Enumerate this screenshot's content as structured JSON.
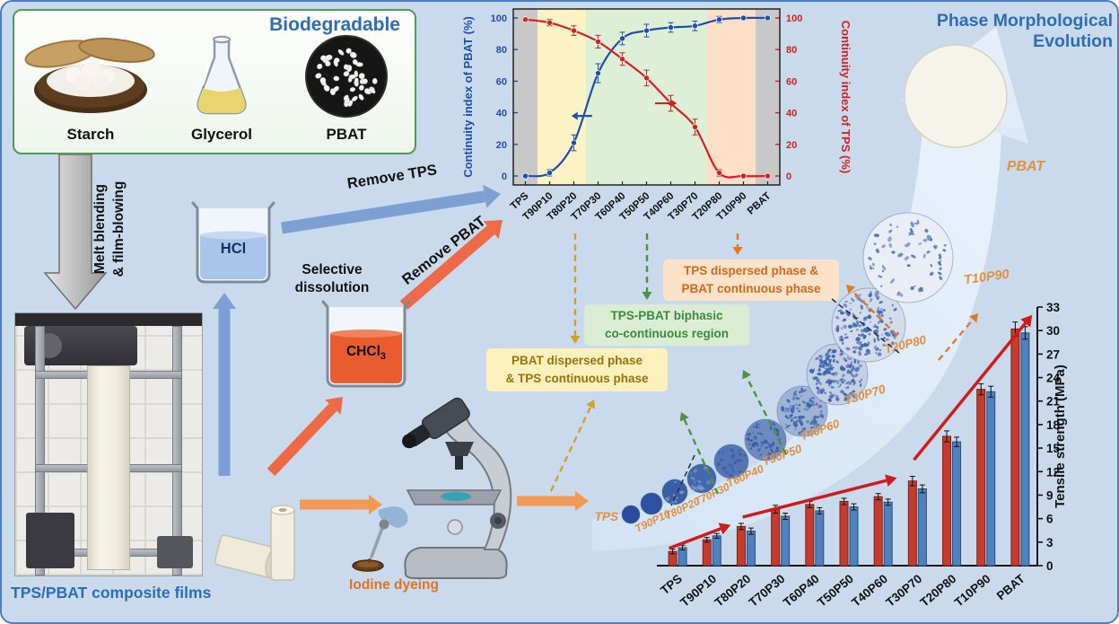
{
  "figure": {
    "bg_color": "#c9daed",
    "accent_blue": "#2e6cb5",
    "stage_label_color": "#e2903f"
  },
  "biodegradable": {
    "title": "Biodegradable",
    "items": [
      {
        "label": "Starch"
      },
      {
        "label": "Glycerol"
      },
      {
        "label": "PBAT"
      }
    ]
  },
  "process": {
    "melt_label": "Melt blending\n& film-blowing",
    "film_label": "TPS/PBAT composite films",
    "selective_dissolution": "Selective\ndissolution",
    "hcl_label": "HCl",
    "chcl3_main": "CHCl",
    "chcl3_sub": "3",
    "remove_tps": "Remove TPS",
    "remove_pbat": "Remove PBAT",
    "iodine_label": "Iodine dyeing"
  },
  "regions": {
    "yellow_note": "PBAT dispersed phase\n& TPS continuous phase",
    "green_note": "TPS-PBAT biphasic\nco-continuous region",
    "orange_note": "TPS dispersed phase &\nPBAT continuous phase",
    "yellow_color": "#d2a12a",
    "green_color": "#4f9140",
    "orange_color": "#e07b24"
  },
  "evolution": {
    "title": "Phase Morphological Evolution",
    "stages": [
      "TPS",
      "T90P10",
      "T80P20",
      "T70P30",
      "T60P40",
      "T50P50",
      "T40P60",
      "T30P70",
      "T20P80",
      "T10P90",
      "PBAT"
    ]
  },
  "chart_data": [
    {
      "type": "line",
      "categories": [
        "TPS",
        "T90P10",
        "T80P20",
        "T70P30",
        "T60P40",
        "T50P50",
        "T40P60",
        "T30P70",
        "T20P80",
        "T10P90",
        "PBAT"
      ],
      "series": [
        {
          "name": "Continuity index of PBAT (%)",
          "axis": "left",
          "color": "#1f4fae",
          "values": [
            0,
            2,
            21,
            65,
            87,
            92,
            94,
            95,
            99,
            100,
            100
          ],
          "errors": [
            1,
            2,
            5,
            6,
            4,
            4,
            3,
            3,
            2,
            1,
            1
          ]
        },
        {
          "name": "Continuity index of TPS (%)",
          "axis": "right",
          "color": "#d42020",
          "values": [
            99,
            97,
            92,
            85,
            74,
            62,
            46,
            31,
            2,
            0,
            0
          ],
          "errors": [
            1,
            2,
            3,
            4,
            4,
            5,
            5,
            5,
            2,
            1,
            1
          ]
        }
      ],
      "ylabel_left": "Continuity index of PBAT (%)",
      "ylabel_right": "Continuity index of TPS (%)",
      "ylim": [
        0,
        100
      ],
      "yticks": [
        0,
        20,
        40,
        60,
        80,
        100
      ],
      "bands": [
        {
          "from": -0.5,
          "to": 0.5,
          "color": "#c8c8c8"
        },
        {
          "from": 0.5,
          "to": 2.5,
          "color": "#fbf3c4"
        },
        {
          "from": 2.5,
          "to": 7.5,
          "color": "#ddefd5"
        },
        {
          "from": 7.5,
          "to": 9.5,
          "color": "#fbdfc7"
        },
        {
          "from": 9.5,
          "to": 10.5,
          "color": "#c8c8c8"
        }
      ],
      "legend_position": "none",
      "grid": false
    },
    {
      "type": "bar",
      "categories": [
        "TPS",
        "T90P10",
        "T80P20",
        "T70P30",
        "T60P40",
        "T50P50",
        "T40P60",
        "T30P70",
        "T20P80",
        "T10P90",
        "PBAT"
      ],
      "series": [
        {
          "name": "series-red",
          "color": "#c43c2e",
          "values": [
            1.8,
            3.3,
            5.0,
            7.2,
            7.8,
            8.2,
            8.8,
            10.8,
            16.5,
            22.5,
            30.2
          ],
          "errors": [
            0.3,
            0.3,
            0.4,
            0.5,
            0.4,
            0.4,
            0.4,
            0.6,
            0.7,
            0.7,
            0.9
          ]
        },
        {
          "name": "series-blue",
          "color": "#4f81bd",
          "values": [
            2.3,
            3.8,
            4.4,
            6.3,
            7.0,
            7.5,
            8.1,
            9.8,
            15.8,
            22.2,
            29.7
          ],
          "errors": [
            0.3,
            0.3,
            0.4,
            0.4,
            0.4,
            0.4,
            0.4,
            0.5,
            0.6,
            0.7,
            0.8
          ]
        }
      ],
      "ylabel": "Tensile strength (MPa)",
      "ylim": [
        0,
        33
      ],
      "yticks": [
        0,
        3,
        6,
        9,
        12,
        15,
        18,
        21,
        24,
        27,
        30,
        33
      ],
      "grid": false
    }
  ]
}
